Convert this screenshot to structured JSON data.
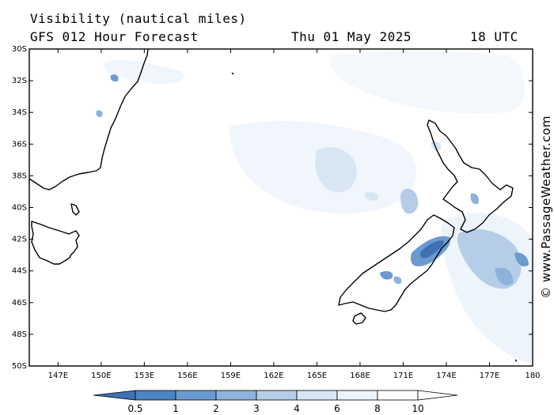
{
  "header": {
    "title": "Visibility (nautical miles)",
    "subtitle": "GFS 012 Hour Forecast",
    "date": "Thu 01 May 2025",
    "time": "18 UTC"
  },
  "credit": "© www.PassageWeather.com",
  "map": {
    "lat_range": [
      -50,
      -30
    ],
    "lon_range": [
      145,
      180
    ],
    "lat_labels": [
      "30S",
      "32S",
      "34S",
      "36S",
      "38S",
      "40S",
      "42S",
      "44S",
      "46S",
      "48S",
      "50S"
    ],
    "lon_labels": [
      "147E",
      "150E",
      "153E",
      "156E",
      "159E",
      "162E",
      "165E",
      "168E",
      "171E",
      "174E",
      "177E",
      "180"
    ],
    "coastline_color": "#000000",
    "frame_color": "#000000"
  },
  "colorbar": {
    "labels": [
      "0.5",
      "1",
      "2",
      "3",
      "4",
      "6",
      "8",
      "10"
    ],
    "colors": [
      "#3f70b3",
      "#4d84c2",
      "#6b9ad0",
      "#8eb2dc",
      "#b6cde8",
      "#d8e6f4",
      "#eef4fb",
      "#ffffff"
    ],
    "units": "nautical miles"
  }
}
